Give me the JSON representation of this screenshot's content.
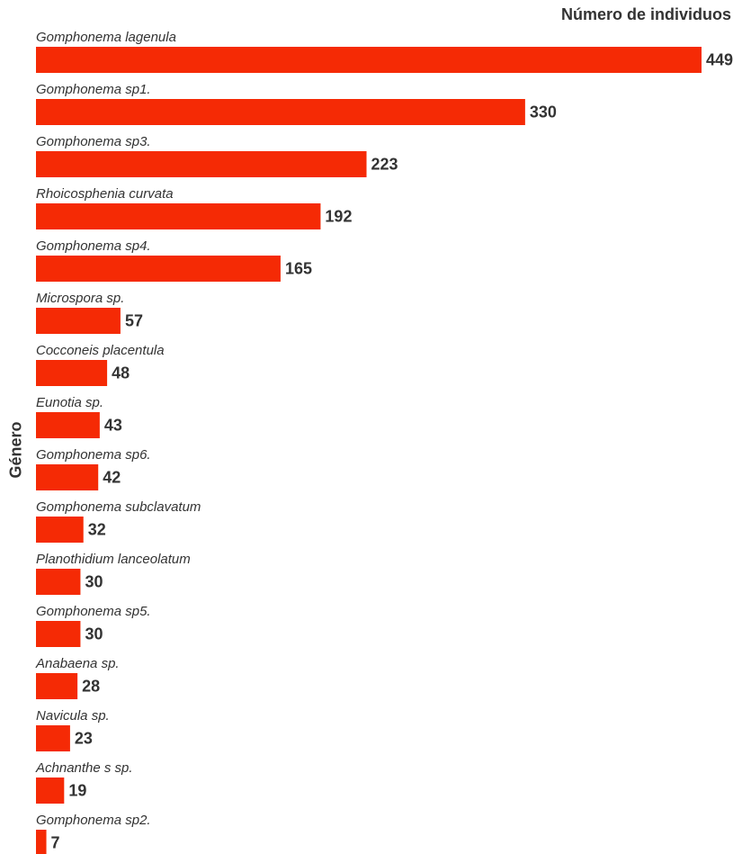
{
  "chart_data": {
    "type": "bar",
    "orientation": "horizontal",
    "xlabel": "Número de individuos",
    "ylabel": "Género",
    "xlim": [
      0,
      449
    ],
    "grid": false,
    "bar_color": "#f52a05",
    "categories": [
      "Gomphonema lagenula",
      "Gomphonema sp1.",
      "Gomphonema sp3.",
      "Rhoicosphenia curvata",
      "Gomphonema sp4.",
      "Microspora sp.",
      "Cocconeis placentula",
      "Eunotia sp.",
      "Gomphonema sp6.",
      "Gomphonema subclavatum",
      "Planothidium lanceolatum",
      "Gomphonema sp5.",
      "Anabaena sp.",
      "Navicula sp.",
      "Achnanthe s sp.",
      "Gomphonema sp2."
    ],
    "values": [
      449,
      330,
      223,
      192,
      165,
      57,
      48,
      43,
      42,
      32,
      30,
      30,
      28,
      23,
      19,
      7
    ]
  }
}
